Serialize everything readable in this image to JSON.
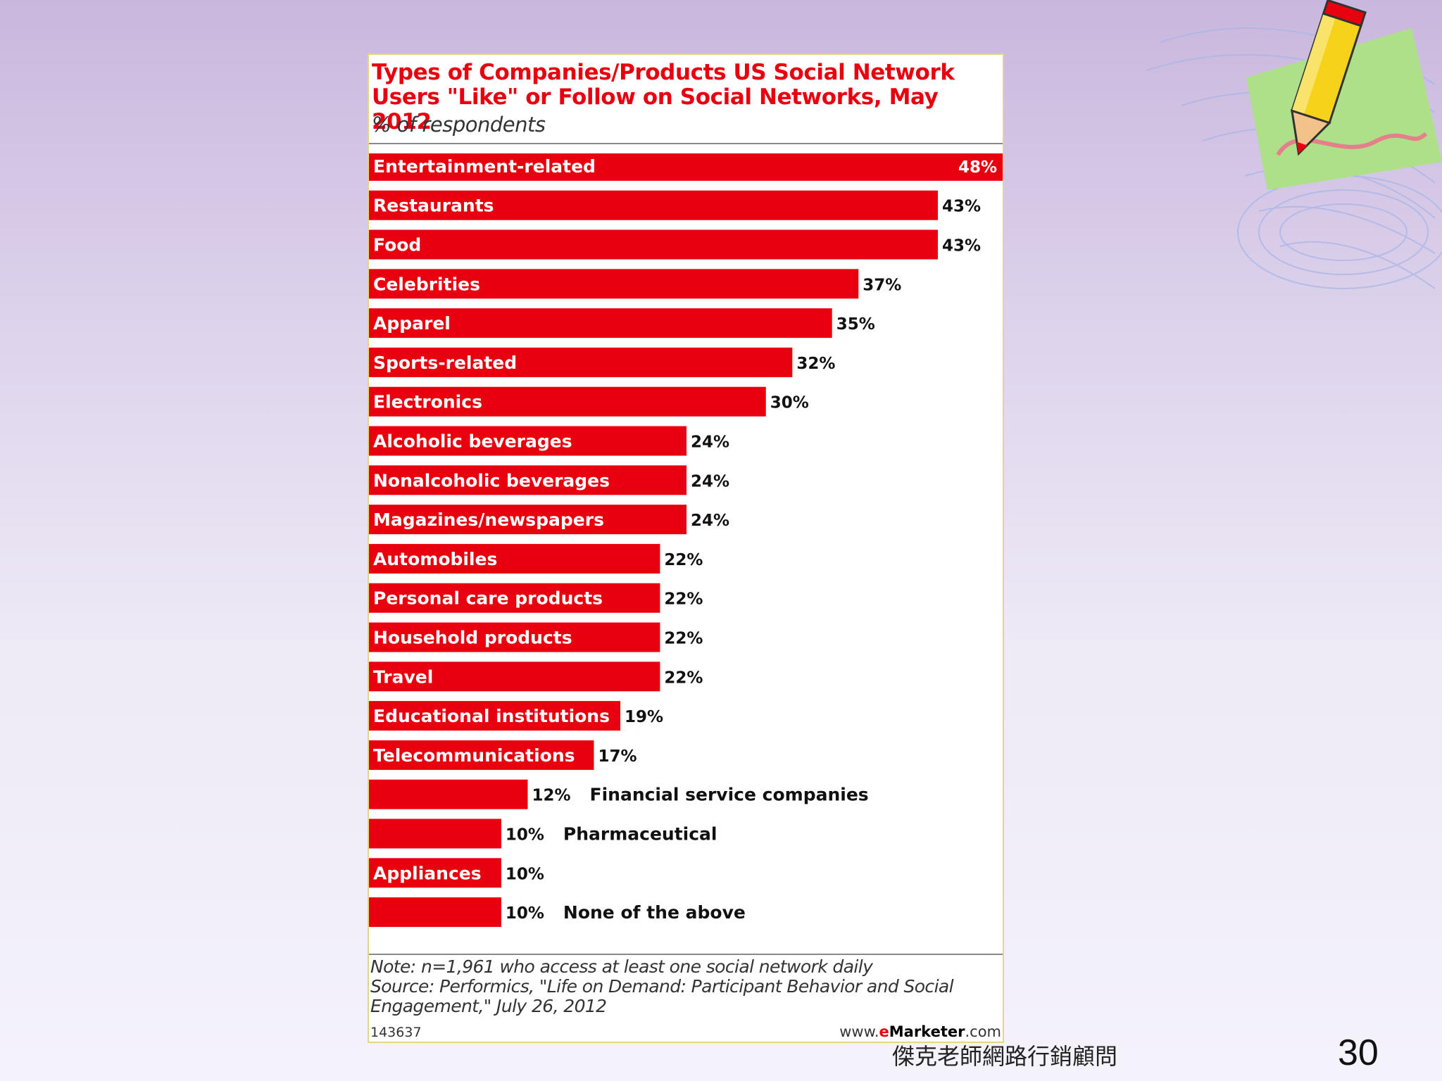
{
  "chart_data": {
    "type": "bar",
    "orientation": "horizontal",
    "title": "Types of Companies/Products US Social Network Users \"Like\" or Follow on Social Networks, May 2012",
    "subtitle": "% of respondents",
    "unit": "%",
    "categories": [
      "Entertainment-related",
      "Restaurants",
      "Food",
      "Celebrities",
      "Apparel",
      "Sports-related",
      "Electronics",
      "Alcoholic beverages",
      "Nonalcoholic beverages",
      "Magazines/newspapers",
      "Automobiles",
      "Personal care products",
      "Household products",
      "Travel",
      "Educational institutions",
      "Telecommunications",
      "Financial service companies",
      "Pharmaceutical",
      "Appliances",
      "None of the above"
    ],
    "values": [
      48,
      43,
      43,
      37,
      35,
      32,
      30,
      24,
      24,
      24,
      22,
      22,
      22,
      22,
      19,
      17,
      12,
      10,
      10,
      10
    ],
    "label_outside": [
      false,
      false,
      false,
      false,
      false,
      false,
      false,
      false,
      false,
      false,
      false,
      false,
      false,
      false,
      false,
      false,
      true,
      true,
      false,
      true
    ],
    "xlim": [
      0,
      48
    ],
    "bar_color": "#e8000f",
    "grid": false,
    "legend": "none"
  },
  "note_lines": [
    "Note: n=1,961 who access at least one social network daily",
    "Source: Performics, \"Life on Demand: Participant Behavior and Social",
    "Engagement,\" July 26, 2012"
  ],
  "chart_id": "143637",
  "brand": {
    "prefix": "www.",
    "e": "e",
    "name": "Marketer",
    "suffix": ".com"
  },
  "slide_footer": "傑克老師網路行銷顧問",
  "page_number": "30",
  "colors": {
    "accent": "#e8000f",
    "background_top": "#c9b7dd",
    "background_bottom": "#f4f2fa"
  }
}
